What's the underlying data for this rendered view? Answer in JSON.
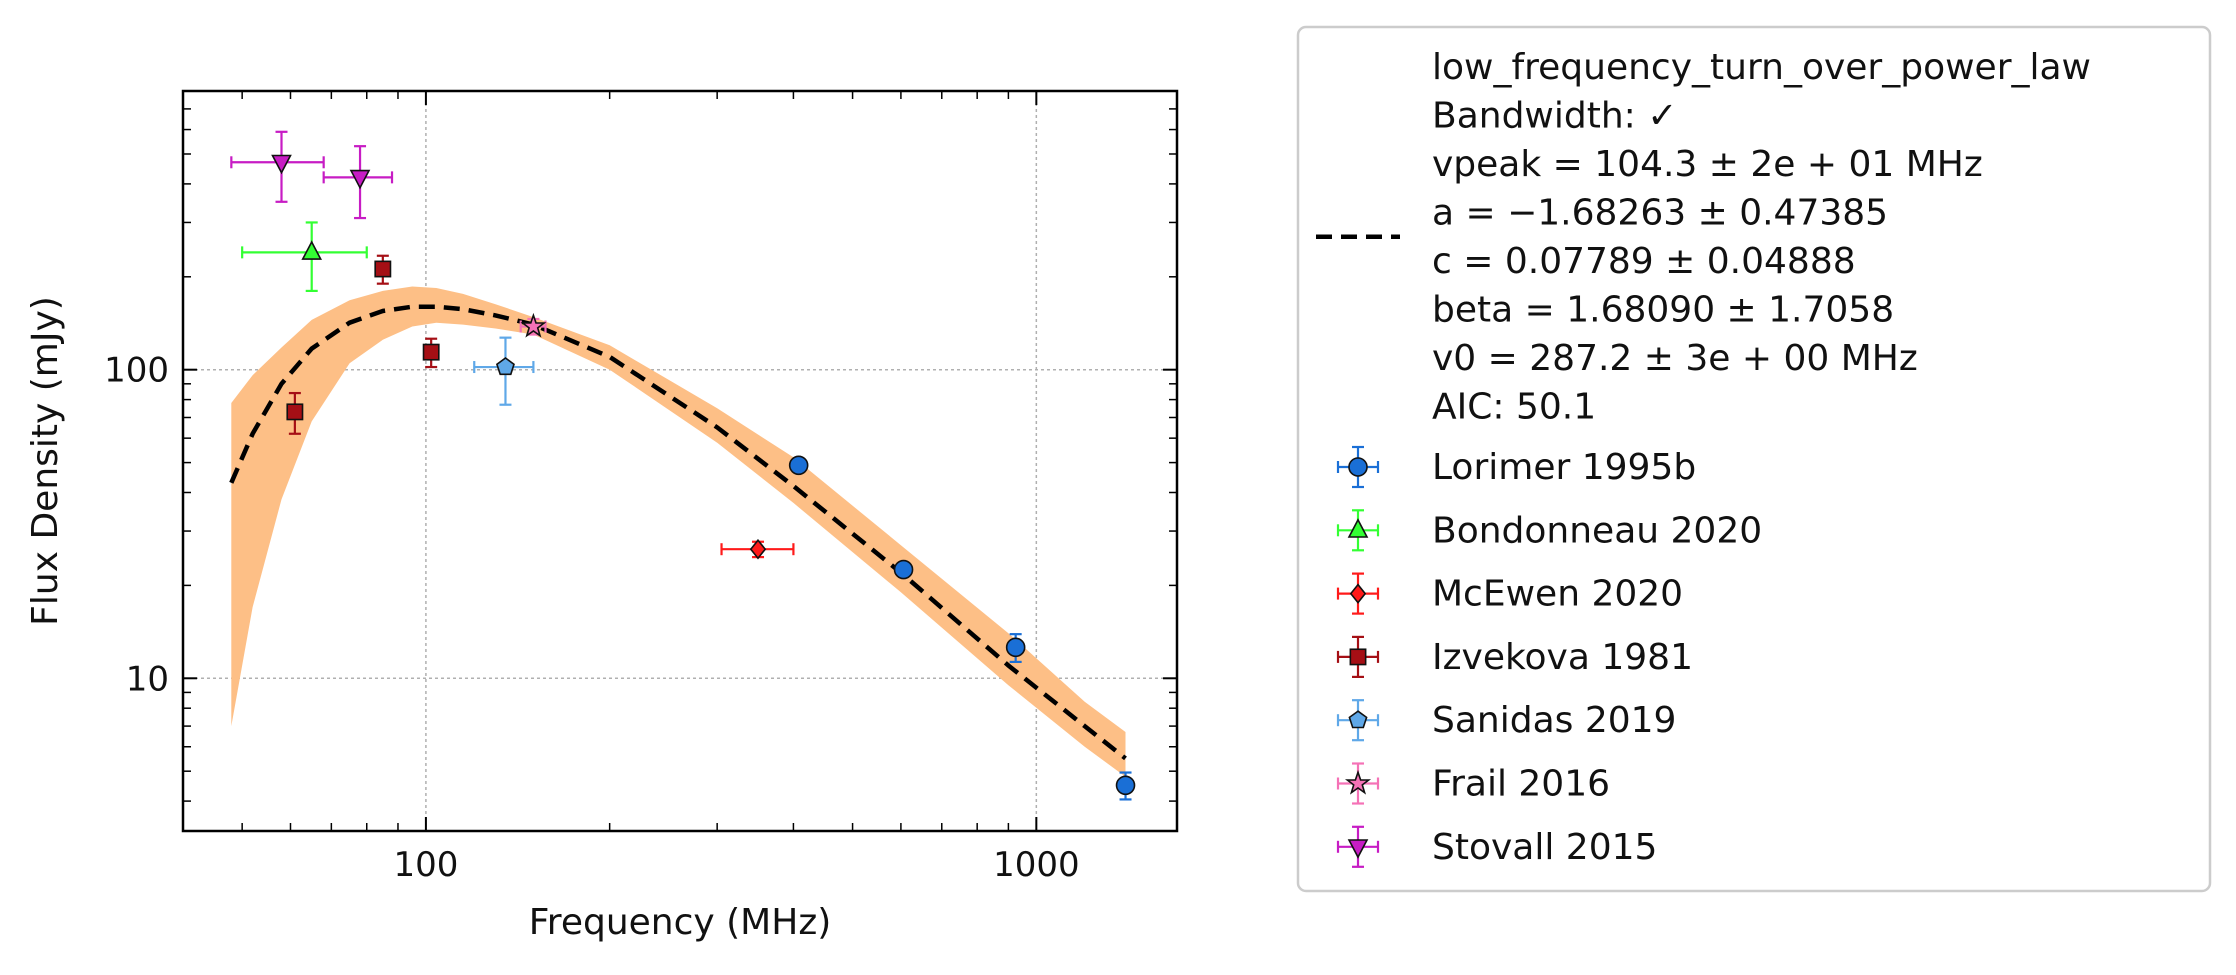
{
  "chart_data": {
    "type": "scatter",
    "xlabel": "Frequency (MHz)",
    "ylabel": "Flux Density (mJy)",
    "xscale": "log",
    "yscale": "log",
    "xlim": [
      40,
      1700
    ],
    "ylim": [
      3.2,
      800
    ],
    "grid": true,
    "legend_position": "outside-right",
    "x_ticks": [
      {
        "value": 100,
        "label": "100"
      },
      {
        "value": 1000,
        "label": "1000"
      }
    ],
    "y_ticks": [
      {
        "value": 10,
        "label": "10"
      },
      {
        "value": 100,
        "label": "100"
      }
    ],
    "fit": {
      "model": "low_frequency_turn_over_power_law",
      "color": "#000000",
      "band_color": "#fdbf86",
      "label_lines": [
        "low_frequency_turn_over_power_law",
        "Bandwidth: ✓",
        "vpeak = 104.3 ± 2e + 01 MHz",
        "a = −1.68263 ± 0.47385",
        "c = 0.07789 ± 0.04888",
        "beta = 1.68090 ± 1.7058",
        "v0 = 287.2 ± 3e + 00 MHz",
        "AIC: 50.1"
      ],
      "x": [
        48,
        52,
        58,
        65,
        75,
        85,
        95,
        104,
        115,
        130,
        150,
        200,
        300,
        400,
        600,
        900,
        1200,
        1400
      ],
      "y": [
        43,
        62,
        90,
        117,
        142,
        155,
        160,
        160,
        157,
        150,
        140,
        110,
        65,
        42,
        22,
        11,
        7,
        5.5
      ],
      "band_upper": [
        78,
        96,
        118,
        145,
        168,
        180,
        186,
        184,
        176,
        163,
        148,
        120,
        75,
        52,
        27,
        14,
        8.4,
        6.7
      ],
      "band_lower": [
        7,
        17,
        38,
        68,
        105,
        125,
        138,
        142,
        140,
        136,
        130,
        100,
        58,
        37,
        19,
        9.5,
        6,
        4.8
      ]
    },
    "series": [
      {
        "name": "Lorimer 1995b",
        "marker": "circle",
        "color": "#1a6fd6",
        "points": [
          {
            "x": 408,
            "y": 49,
            "xerr": [
              0,
              0
            ],
            "yerr": [
              1.5,
              1.5
            ]
          },
          {
            "x": 606,
            "y": 22.5,
            "xerr": [
              0,
              0
            ],
            "yerr": [
              1,
              1
            ]
          },
          {
            "x": 925,
            "y": 12.6,
            "xerr": [
              0,
              0
            ],
            "yerr": [
              1.3,
              1.3
            ]
          },
          {
            "x": 1400,
            "y": 4.5,
            "xerr": [
              0,
              0
            ],
            "yerr": [
              0.45,
              0.45
            ]
          }
        ]
      },
      {
        "name": "Bondonneau 2020",
        "marker": "triangle-up",
        "color": "#33ff33",
        "points": [
          {
            "x": 65,
            "y": 240,
            "xerr": [
              15,
              15
            ],
            "yerr": [
              60,
              60
            ]
          }
        ]
      },
      {
        "name": "McEwen 2020",
        "marker": "diamond",
        "color": "#ff1a1a",
        "points": [
          {
            "x": 350,
            "y": 26.2,
            "xerr": [
              45,
              50
            ],
            "yerr": [
              1.5,
              1.5
            ]
          }
        ]
      },
      {
        "name": "Izvekova 1981",
        "marker": "square",
        "color": "#a50f15",
        "points": [
          {
            "x": 61,
            "y": 73,
            "xerr": [
              0,
              0
            ],
            "yerr": [
              11,
              11
            ]
          },
          {
            "x": 85,
            "y": 212,
            "xerr": [
              0,
              0
            ],
            "yerr": [
              22,
              22
            ]
          },
          {
            "x": 102,
            "y": 114,
            "xerr": [
              0,
              0
            ],
            "yerr": [
              12,
              12
            ]
          }
        ]
      },
      {
        "name": "Sanidas 2019",
        "marker": "pentagon",
        "color": "#5fa8e8",
        "points": [
          {
            "x": 135,
            "y": 102,
            "xerr": [
              15,
              15
            ],
            "yerr": [
              25,
              25
            ]
          }
        ]
      },
      {
        "name": "Frail 2016",
        "marker": "star",
        "color": "#f572b6",
        "points": [
          {
            "x": 150,
            "y": 138,
            "xerr": [
              7,
              7
            ],
            "yerr": [
              8,
              8
            ]
          }
        ]
      },
      {
        "name": "Stovall 2015",
        "marker": "triangle-down",
        "color": "#c71cc4",
        "points": [
          {
            "x": 58,
            "y": 470,
            "xerr": [
              10,
              10
            ],
            "yerr": [
              120,
              120
            ]
          },
          {
            "x": 78,
            "y": 420,
            "xerr": [
              10,
              10
            ],
            "yerr": [
              110,
              110
            ]
          }
        ]
      }
    ]
  }
}
